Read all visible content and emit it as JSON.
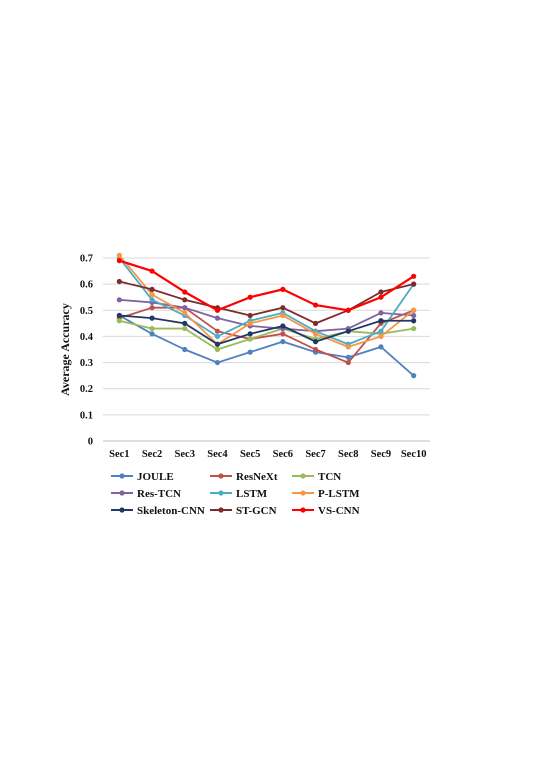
{
  "chart_data": {
    "type": "line",
    "title": "",
    "xlabel": "",
    "ylabel": "Average Accuracy",
    "categories": [
      "Sec1",
      "Sec2",
      "Sec3",
      "Sec4",
      "Sec5",
      "Sec6",
      "Sec7",
      "Sec8",
      "Sec9",
      "Sec10"
    ],
    "ylim": [
      0,
      0.7
    ],
    "yticks": [
      "0",
      "0.1",
      "0.2",
      "0.3",
      "0.4",
      "0.5",
      "0.6",
      "0.7"
    ],
    "grid": true,
    "legend": "bottom",
    "series": [
      {
        "name": "JOULE",
        "color": "#4f81bd",
        "values": [
          0.48,
          0.41,
          0.35,
          0.3,
          0.34,
          0.38,
          0.34,
          0.32,
          0.36,
          0.25
        ]
      },
      {
        "name": "ResNeXt",
        "color": "#c0504d",
        "values": [
          0.47,
          0.51,
          0.51,
          0.42,
          0.39,
          0.41,
          0.35,
          0.3,
          0.45,
          0.5
        ]
      },
      {
        "name": "TCN",
        "color": "#9bbb59",
        "values": [
          0.46,
          0.43,
          0.43,
          0.35,
          0.39,
          0.43,
          0.39,
          0.42,
          0.41,
          0.43
        ]
      },
      {
        "name": "Res-TCN",
        "color": "#8064a2",
        "values": [
          0.54,
          0.53,
          0.51,
          0.47,
          0.44,
          0.43,
          0.42,
          0.43,
          0.49,
          0.48
        ]
      },
      {
        "name": "LSTM",
        "color": "#4bacc6",
        "values": [
          0.7,
          0.54,
          0.48,
          0.4,
          0.46,
          0.49,
          0.42,
          0.37,
          0.42,
          0.6
        ]
      },
      {
        "name": "P-LSTM",
        "color": "#f79646",
        "values": [
          0.71,
          0.56,
          0.49,
          0.37,
          0.45,
          0.48,
          0.41,
          0.36,
          0.4,
          0.5
        ]
      },
      {
        "name": "Skeleton-CNN",
        "color": "#1f3864",
        "values": [
          0.48,
          0.47,
          0.45,
          0.37,
          0.41,
          0.44,
          0.38,
          0.42,
          0.46,
          0.46
        ]
      },
      {
        "name": "ST-GCN",
        "color": "#7b2c2c",
        "values": [
          0.61,
          0.58,
          0.54,
          0.51,
          0.48,
          0.51,
          0.45,
          0.5,
          0.57,
          0.6
        ]
      },
      {
        "name": "VS-CNN",
        "color": "#ff0000",
        "values": [
          0.69,
          0.65,
          0.57,
          0.5,
          0.55,
          0.58,
          0.52,
          0.5,
          0.55,
          0.63
        ]
      }
    ]
  }
}
